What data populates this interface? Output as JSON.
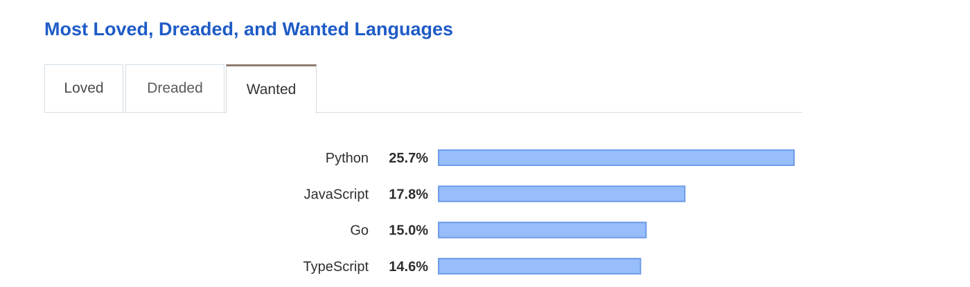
{
  "title": "Most Loved, Dreaded, and Wanted Languages",
  "tabs": [
    {
      "label": "Loved",
      "active": false
    },
    {
      "label": "Dreaded",
      "active": false
    },
    {
      "label": "Wanted",
      "active": true
    }
  ],
  "colors": {
    "title": "#1e5bc6",
    "bar_fill": "#97befa",
    "bar_stroke": "#6d9be8",
    "active_tab_accent": "#8d7a6e"
  },
  "chart_data": {
    "type": "bar",
    "orientation": "horizontal",
    "categories": [
      "Python",
      "JavaScript",
      "Go",
      "TypeScript"
    ],
    "values": [
      25.7,
      17.8,
      15.0,
      14.6
    ],
    "value_labels": [
      "25.7%",
      "17.8%",
      "15.0%",
      "14.6%"
    ],
    "unit": "%",
    "grid": false,
    "legend": false
  }
}
